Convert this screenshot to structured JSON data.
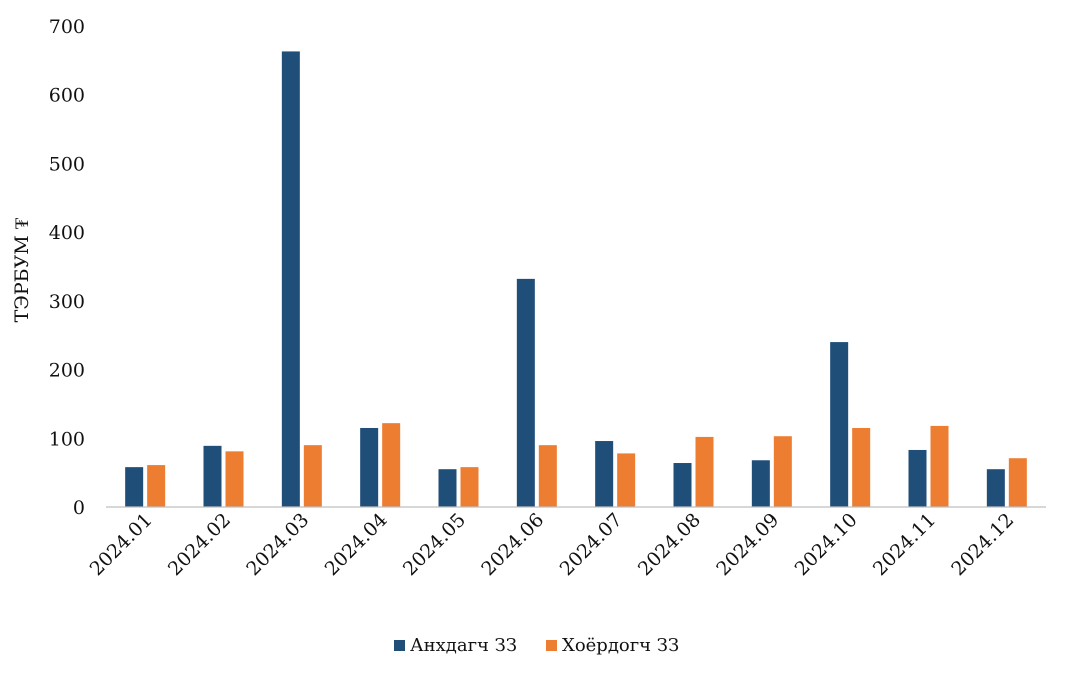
{
  "chart_data": {
    "type": "bar",
    "categories": [
      "2024.01",
      "2024.02",
      "2024.03",
      "2024.04",
      "2024.05",
      "2024.06",
      "2024.07",
      "2024.08",
      "2024.09",
      "2024.10",
      "2024.11",
      "2024.12"
    ],
    "series": [
      {
        "name": "Анхдагч ЗЗ",
        "color": "#1f4e79",
        "values": [
          58,
          89,
          663,
          115,
          55,
          332,
          96,
          64,
          68,
          240,
          83,
          55
        ]
      },
      {
        "name": "Хоёрдогч ЗЗ",
        "color": "#ed7d31",
        "values": [
          61,
          81,
          90,
          122,
          58,
          90,
          78,
          102,
          103,
          115,
          118,
          71
        ]
      }
    ],
    "ylabel": "ТЭРБУМ ₮",
    "ylim": [
      0,
      700
    ],
    "yticks": [
      0,
      100,
      200,
      300,
      400,
      500,
      600,
      700
    ],
    "grid": false,
    "legend": "bottom-center"
  }
}
